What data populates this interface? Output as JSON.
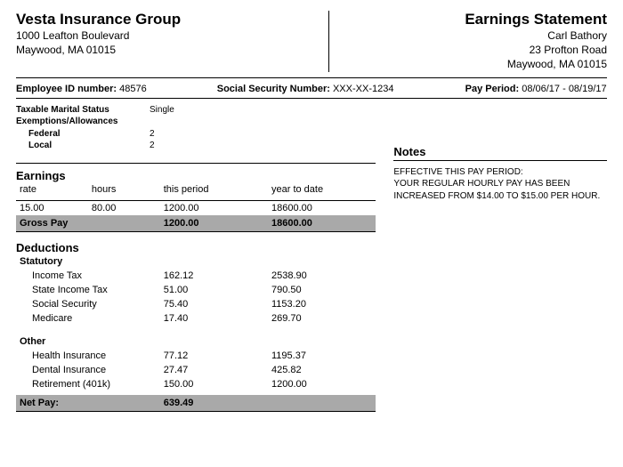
{
  "company": {
    "name": "Vesta Insurance Group",
    "addr1": "1000 Leafton Boulevard",
    "addr2": "Maywood, MA 01015"
  },
  "doc": {
    "title": "Earnings Statement",
    "emp_name": "Carl Bathory",
    "emp_addr1": "23 Profton Road",
    "emp_addr2": "Maywood, MA 01015"
  },
  "info": {
    "emp_id_label": "Employee ID number:",
    "emp_id": "48576",
    "ssn_label": "Social Security Number:",
    "ssn": "XXX-XX-1234",
    "period_label": "Pay Period:",
    "period": "08/06/17 - 08/19/17"
  },
  "tax": {
    "marital_label": "Taxable Marital Status",
    "marital": "Single",
    "exempt_label": "Exemptions/Allowances",
    "federal_label": "Federal",
    "federal": "2",
    "local_label": "Local",
    "local": "2"
  },
  "earnings": {
    "title": "Earnings",
    "h_rate": "rate",
    "h_hours": "hours",
    "h_period": "this period",
    "h_ytd": "year to date",
    "rate": "15.00",
    "hours": "80.00",
    "period": "1200.00",
    "ytd": "18600.00",
    "gross_label": "Gross Pay",
    "gross_period": "1200.00",
    "gross_ytd": "18600.00"
  },
  "deductions": {
    "title": "Deductions",
    "statutory_label": "Statutory",
    "other_label": "Other",
    "statutory": [
      {
        "label": "Income Tax",
        "period": "162.12",
        "ytd": "2538.90"
      },
      {
        "label": "State Income Tax",
        "period": "51.00",
        "ytd": "790.50"
      },
      {
        "label": "Social Security",
        "period": "75.40",
        "ytd": "1153.20"
      },
      {
        "label": "Medicare",
        "period": "17.40",
        "ytd": "269.70"
      }
    ],
    "other": [
      {
        "label": "Health Insurance",
        "period": "77.12",
        "ytd": "1195.37"
      },
      {
        "label": "Dental Insurance",
        "period": "27.47",
        "ytd": "425.82"
      },
      {
        "label": "Retirement (401k)",
        "period": "150.00",
        "ytd": "1200.00"
      }
    ]
  },
  "net": {
    "label": "Net Pay:",
    "value": "639.49"
  },
  "notes": {
    "title": "Notes",
    "line1": "EFFECTIVE THIS PAY PERIOD:",
    "line2": "YOUR REGULAR HOURLY PAY HAS BEEN INCREASED FROM $14.00 TO $15.00 PER HOUR."
  },
  "style": {
    "highlight_bg": "#a9a9a9",
    "rule_color": "#000000",
    "font_family": "Arial, Helvetica, sans-serif"
  }
}
